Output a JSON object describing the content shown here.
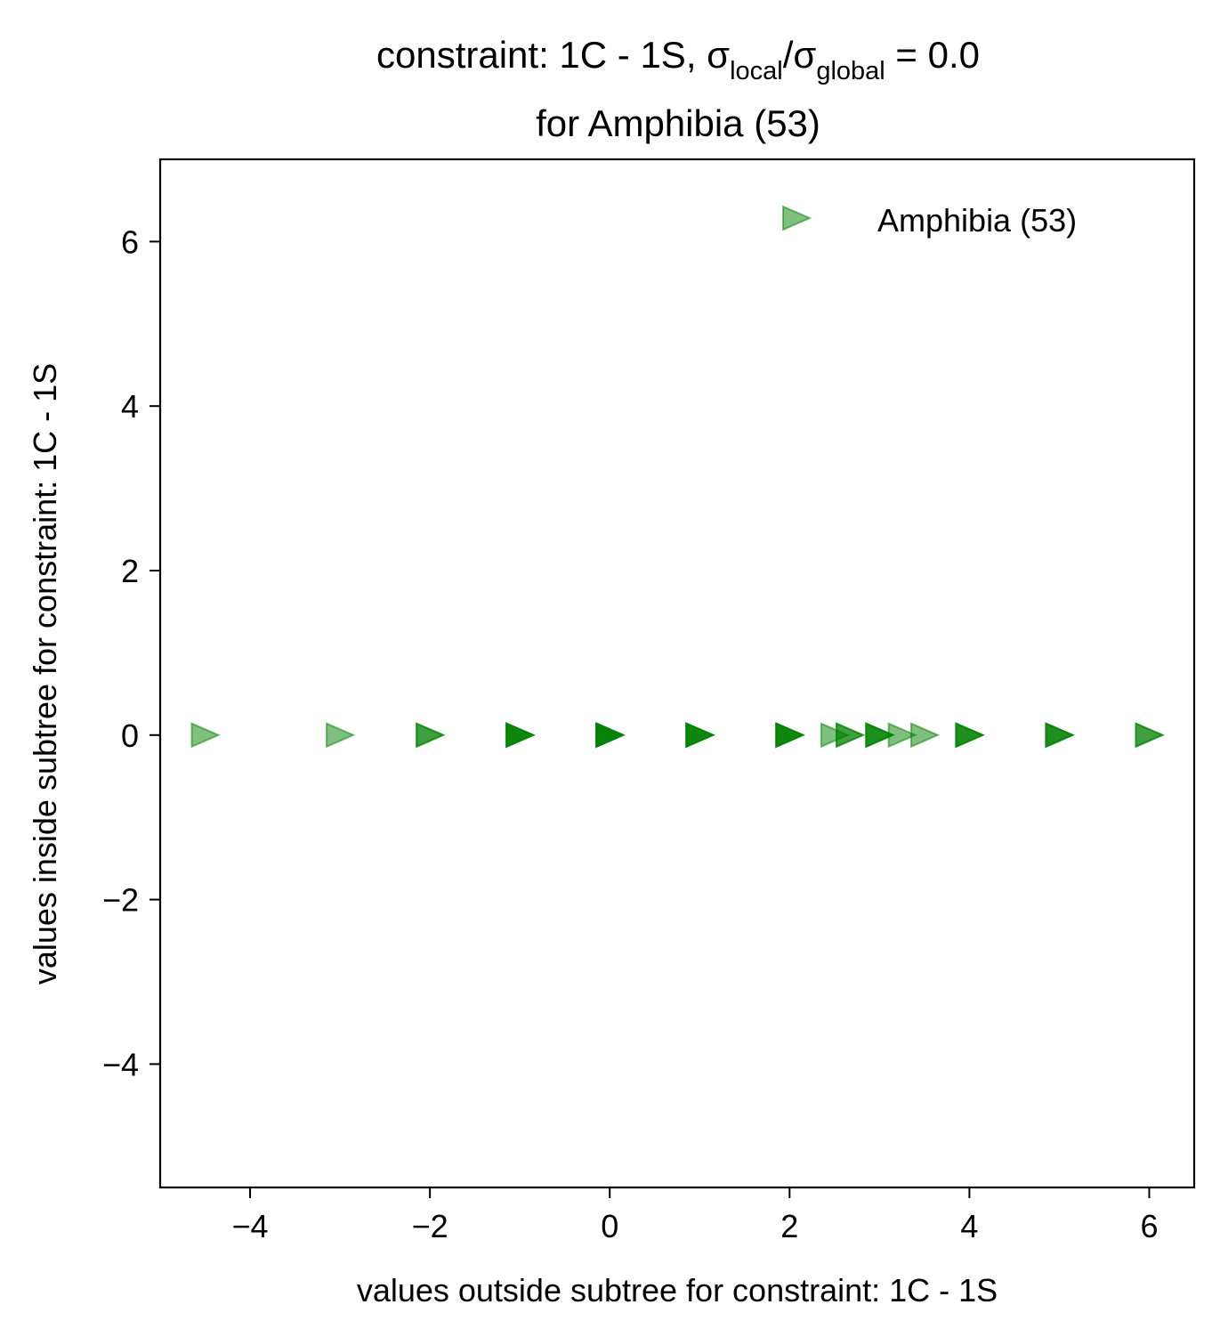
{
  "chart_data": {
    "type": "scatter",
    "title": {
      "prefix": "constraint: 1C - 1S, σ",
      "sub1": "local",
      "mid": "/σ",
      "sub2": "global",
      "suffix": " =  0.0",
      "line2": "for Amphibia (53)"
    },
    "xlabel": "values outside subtree for constraint: 1C - 1S",
    "ylabel": "values inside subtree for constraint: 1C - 1S",
    "xlim": [
      -5.0,
      6.5
    ],
    "ylim": [
      -5.5,
      7.0
    ],
    "xticks": [
      -4,
      -2,
      0,
      2,
      4,
      6
    ],
    "yticks": [
      -4,
      -2,
      0,
      2,
      4,
      6
    ],
    "xtick_labels": [
      "−4",
      "−2",
      "0",
      "2",
      "4",
      "6"
    ],
    "ytick_labels": [
      "−4",
      "−2",
      "0",
      "2",
      "4",
      "6"
    ],
    "grid": false,
    "legend_position": "top-right",
    "marker": "triangle-right",
    "series": [
      {
        "name": "Amphibia (53)",
        "color": "#008000",
        "points": [
          {
            "x": -4.5,
            "y": 0,
            "n": 1
          },
          {
            "x": -3.0,
            "y": 0,
            "n": 1
          },
          {
            "x": -2.0,
            "y": 0,
            "n": 2
          },
          {
            "x": -1.0,
            "y": 0,
            "n": 4
          },
          {
            "x": 0.0,
            "y": 0,
            "n": 5
          },
          {
            "x": 1.0,
            "y": 0,
            "n": 4
          },
          {
            "x": 2.0,
            "y": 0,
            "n": 4
          },
          {
            "x": 2.5,
            "y": 0,
            "n": 1
          },
          {
            "x": 2.67,
            "y": 0,
            "n": 2
          },
          {
            "x": 3.0,
            "y": 0,
            "n": 3
          },
          {
            "x": 3.25,
            "y": 0,
            "n": 1
          },
          {
            "x": 3.5,
            "y": 0,
            "n": 1
          },
          {
            "x": 4.0,
            "y": 0,
            "n": 3
          },
          {
            "x": 5.0,
            "y": 0,
            "n": 3
          },
          {
            "x": 6.0,
            "y": 0,
            "n": 2
          }
        ]
      }
    ]
  }
}
